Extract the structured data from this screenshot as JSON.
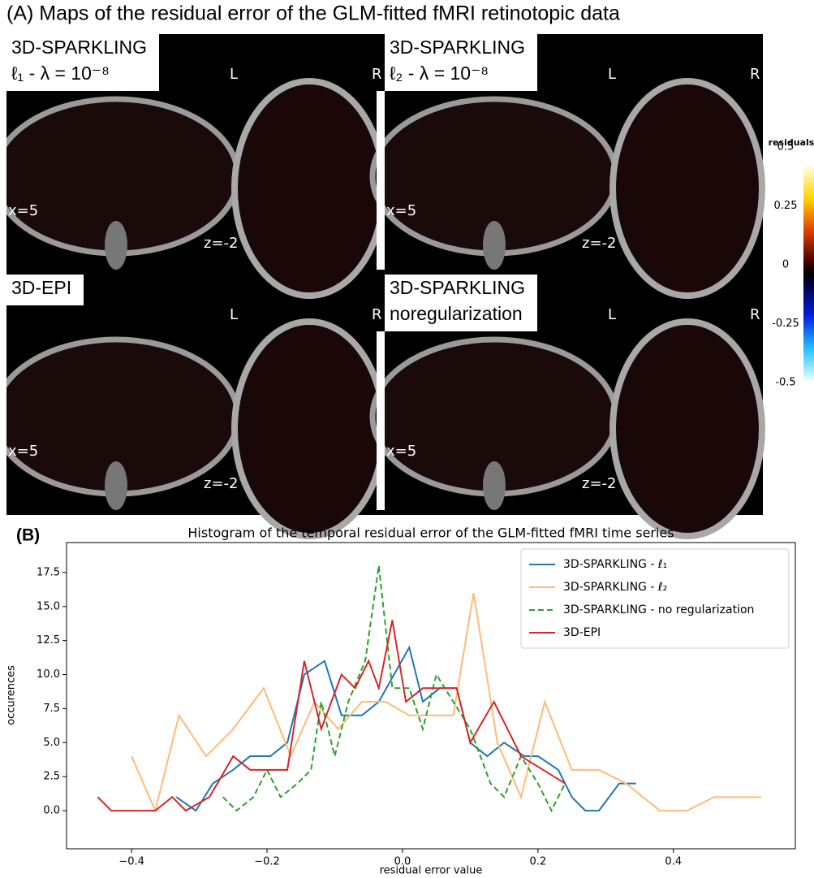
{
  "figure_a": {
    "heading": "(A) Maps of the residual error of the GLM-fitted fMRI retinotopic data",
    "panels": [
      {
        "title": [
          "3D-SPARKLING",
          "ℓ₁ - λ = 10⁻⁸"
        ],
        "left": "L",
        "right": "R",
        "sagittal": "x=5",
        "axial": "z=-2"
      },
      {
        "title": [
          "3D-SPARKLING",
          "ℓ₂ - λ = 10⁻⁸"
        ],
        "left": "L",
        "right": "R",
        "sagittal": "x=5",
        "axial": "z=-2"
      },
      {
        "title": [
          "3D-EPI"
        ],
        "left": "L",
        "right": "R",
        "sagittal": "x=5",
        "axial": "z=-2"
      },
      {
        "title": [
          "3D-SPARKLING",
          " noregularization"
        ],
        "left": "L",
        "right": "R",
        "sagittal": "x=5",
        "axial": "z=-2"
      }
    ],
    "colorbar": {
      "label": "residuals",
      "lim": [
        -0.5,
        0.5
      ],
      "ticks": [
        0.5,
        0.25,
        0,
        -0.25,
        -0.5
      ]
    }
  },
  "chart_data": {
    "type": "line",
    "panel_label": "(B)",
    "title": "Histogram of the temporal residual error of the GLM-fitted fMRI time series",
    "x_label": "residual error value",
    "y_label": "occurences",
    "xlim": [
      -0.496,
      0.58
    ],
    "ylim": [
      -2.8,
      19.7
    ],
    "xticks": [
      {
        "value": -0.4,
        "label": "−0.4"
      },
      {
        "value": -0.2,
        "label": "−0.2"
      },
      {
        "value": 0,
        "label": "0.0"
      },
      {
        "value": 0.2,
        "label": "0.2"
      },
      {
        "value": 0.4,
        "label": "0.4"
      }
    ],
    "yticks": [
      {
        "value": 0,
        "label": "0.0"
      },
      2.5,
      {
        "value": 5,
        "label": "5.0"
      },
      7.5,
      {
        "value": 10,
        "label": "10.0"
      },
      12.5,
      {
        "value": 15,
        "label": "15.0"
      },
      17.5
    ],
    "legend": "upper right",
    "series": [
      {
        "name": "3D-SPARKLING - ℓ₁",
        "color": "#1f77b4",
        "dash": false,
        "x": [
          -0.334,
          -0.305,
          -0.28,
          -0.25,
          -0.225,
          -0.195,
          -0.17,
          -0.145,
          -0.115,
          -0.09,
          -0.06,
          -0.035,
          0.01,
          0.03,
          0.055,
          0.08,
          0.1,
          0.125,
          0.15,
          0.18,
          0.2,
          0.23,
          0.25,
          0.27,
          0.29,
          0.32,
          0.345
        ],
        "values": [
          1,
          0,
          2,
          3,
          4,
          4,
          5,
          10,
          11,
          7,
          7,
          8,
          12,
          8,
          9,
          9,
          5,
          4,
          5,
          4,
          4,
          3,
          1,
          0,
          0,
          2,
          2
        ]
      },
      {
        "name": "3D-SPARKLING - ℓ₂",
        "color": "#ffbb78",
        "dash": false,
        "x": [
          -0.4,
          -0.365,
          -0.33,
          -0.29,
          -0.25,
          -0.205,
          -0.165,
          -0.13,
          -0.095,
          -0.06,
          -0.025,
          0.01,
          0.045,
          0.075,
          0.105,
          0.14,
          0.175,
          0.21,
          0.25,
          0.29,
          0.33,
          0.38,
          0.42,
          0.46,
          0.53
        ],
        "values": [
          4,
          0,
          7,
          4,
          6,
          9,
          4,
          8,
          6,
          8,
          8,
          7,
          7,
          7,
          16,
          5,
          1,
          8,
          3,
          3,
          2,
          0,
          0,
          1,
          1
        ]
      },
      {
        "name": "3D-SPARKLING - no regularization",
        "color": "#2ca02c",
        "dash": true,
        "x": [
          -0.265,
          -0.245,
          -0.22,
          -0.2,
          -0.18,
          -0.155,
          -0.135,
          -0.12,
          -0.1,
          -0.08,
          -0.055,
          -0.035,
          -0.015,
          0.01,
          0.03,
          0.05,
          0.075,
          0.1,
          0.13,
          0.15,
          0.175,
          0.2,
          0.22,
          0.24
        ],
        "values": [
          1,
          0,
          1,
          3,
          1,
          2,
          3,
          8,
          4,
          8,
          11,
          18,
          9,
          9,
          6,
          10,
          8,
          6,
          2,
          1,
          4,
          2,
          0,
          2
        ]
      },
      {
        "name": "3D-EPI",
        "color": "#d62728",
        "dash": false,
        "x": [
          -0.45,
          -0.43,
          -0.365,
          -0.34,
          -0.32,
          -0.285,
          -0.25,
          -0.225,
          -0.2,
          -0.17,
          -0.145,
          -0.12,
          -0.09,
          -0.07,
          -0.05,
          -0.035,
          -0.015,
          0.005,
          0.03,
          0.055,
          0.08,
          0.1,
          0.135,
          0.175,
          0.24
        ],
        "values": [
          1,
          0,
          0,
          1,
          0,
          1,
          4,
          3,
          3,
          3,
          11,
          6,
          10,
          9,
          11,
          9,
          14,
          8,
          9,
          9,
          9,
          5,
          8,
          4,
          2
        ]
      }
    ]
  }
}
